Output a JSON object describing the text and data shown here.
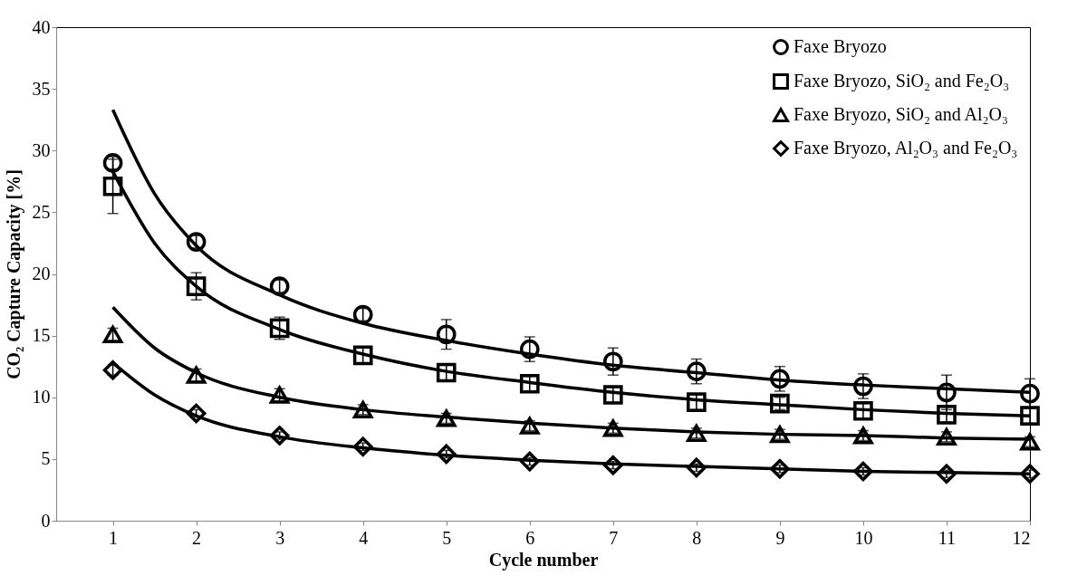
{
  "chart_data": {
    "type": "scatter",
    "xlabel": "Cycle number",
    "ylabel": "CO₂ Capture Capacity [%]",
    "xlim": [
      0.32,
      12
    ],
    "xticks": [
      1,
      2,
      3,
      4,
      5,
      6,
      7,
      8,
      9,
      10,
      11,
      12
    ],
    "ylim": [
      0,
      40
    ],
    "yticks": [
      0,
      5,
      10,
      15,
      20,
      25,
      30,
      35,
      40
    ],
    "grid": false,
    "legend": "top right",
    "x": [
      1,
      2,
      3,
      4,
      5,
      6,
      7,
      8,
      9,
      10,
      11,
      12
    ],
    "series": [
      {
        "name": "Faxe Bryozo",
        "color": "#000000",
        "marker": "circle",
        "values": [
          29.0,
          22.6,
          19.0,
          16.7,
          15.1,
          13.9,
          12.9,
          12.1,
          11.5,
          10.9,
          10.4,
          10.3
        ],
        "errors": [
          0.5,
          0.5,
          0.5,
          0.5,
          1.2,
          1.0,
          1.1,
          1.0,
          1.0,
          1.0,
          1.4,
          1.2
        ]
      },
      {
        "name": "Faxe Bryozo, SiO₂ and Fe₂O₃",
        "color": "#000000",
        "marker": "square",
        "values": [
          27.1,
          19.0,
          15.6,
          13.4,
          12.0,
          11.1,
          10.2,
          9.6,
          9.5,
          8.9,
          8.6,
          8.5
        ],
        "errors": [
          2.2,
          1.1,
          0.9,
          0.6,
          0.6,
          0.6,
          0.6,
          0.6,
          0.5,
          0.6,
          0.6,
          0.6
        ]
      },
      {
        "name": "Faxe Bryozo, SiO₂ and Al₂O₃",
        "color": "#000000",
        "marker": "triangle",
        "values": [
          15.1,
          11.8,
          10.2,
          9.0,
          8.3,
          7.7,
          7.5,
          7.1,
          7.0,
          6.9,
          6.8,
          6.4
        ],
        "errors": [
          0.5,
          0.5,
          0.5,
          0.4,
          0.4,
          0.4,
          0.4,
          0.4,
          0.4,
          0.4,
          0.4,
          0.4
        ]
      },
      {
        "name": "Faxe Bryozo, Al₂O₃ and Fe₂O₃",
        "color": "#000000",
        "marker": "diamond",
        "values": [
          12.2,
          8.7,
          6.9,
          6.0,
          5.4,
          4.8,
          4.5,
          4.3,
          4.2,
          4.0,
          3.8,
          3.8
        ],
        "errors": [
          0.4,
          0.3,
          0.3,
          0.3,
          0.3,
          0.3,
          0.3,
          0.3,
          0.3,
          0.3,
          0.3,
          0.3
        ]
      },
      {
        "type": "line",
        "color": "#000000",
        "x": [
          1,
          1.5,
          2,
          3,
          4,
          5,
          6,
          7,
          8,
          9,
          10,
          11,
          12
        ],
        "values": [
          33.3,
          26.5,
          22.3,
          18.3,
          16.0,
          14.6,
          13.5,
          12.6,
          12.0,
          11.4,
          11.0,
          10.7,
          10.4
        ]
      },
      {
        "type": "line",
        "color": "#000000",
        "x": [
          1,
          1.5,
          2,
          3,
          4,
          5,
          6,
          7,
          8,
          9,
          10,
          11,
          12
        ],
        "values": [
          28.3,
          22.5,
          19.0,
          15.5,
          13.5,
          12.1,
          11.2,
          10.4,
          9.8,
          9.4,
          9.0,
          8.7,
          8.5
        ]
      },
      {
        "type": "line",
        "color": "#000000",
        "x": [
          1,
          1.5,
          2,
          3,
          4,
          5,
          6,
          7,
          8,
          9,
          10,
          11,
          12
        ],
        "values": [
          17.3,
          14.0,
          12.0,
          10.0,
          9.0,
          8.4,
          7.9,
          7.5,
          7.2,
          7.0,
          6.9,
          6.7,
          6.6
        ]
      },
      {
        "type": "line",
        "color": "#000000",
        "x": [
          1,
          1.5,
          2,
          3,
          4,
          5,
          6,
          7,
          8,
          9,
          10,
          11,
          12
        ],
        "values": [
          12.8,
          10.2,
          8.5,
          6.8,
          5.9,
          5.3,
          4.9,
          4.6,
          4.4,
          4.2,
          4.0,
          3.9,
          3.8
        ]
      }
    ]
  }
}
